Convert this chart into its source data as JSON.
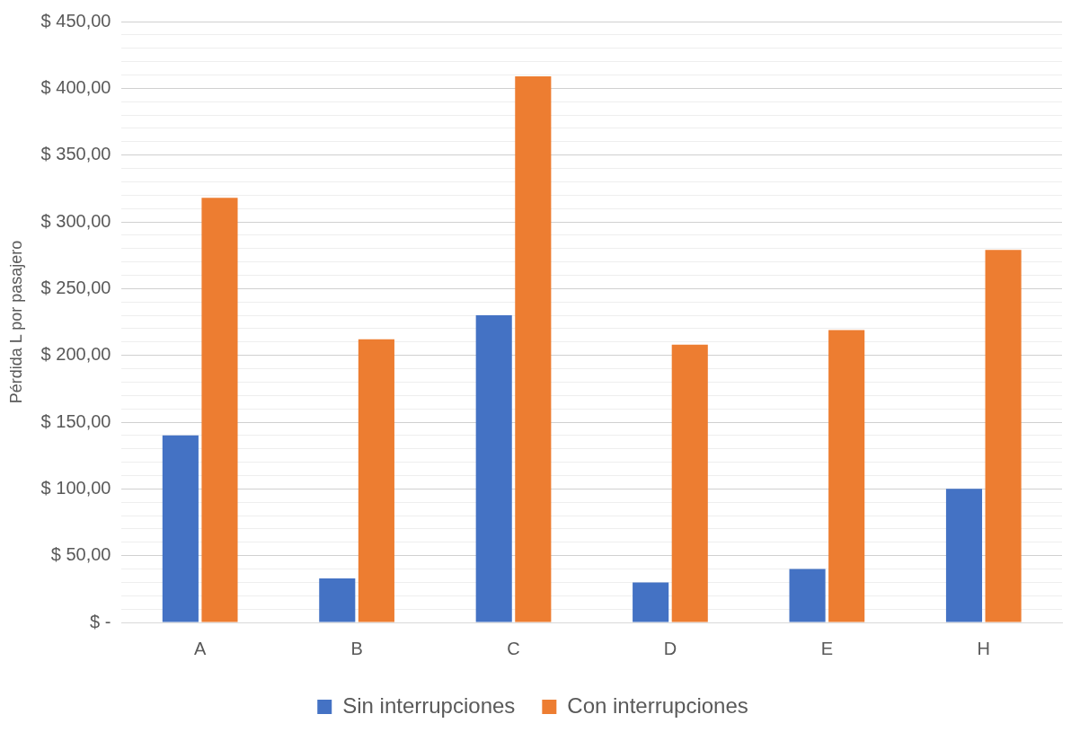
{
  "chart_data": {
    "type": "bar",
    "ylabel": "Pérdida L por pasajero",
    "categories": [
      "A",
      "B",
      "C",
      "D",
      "E",
      "H"
    ],
    "series": [
      {
        "name": "Sin interrupciones",
        "color": "#4472c4",
        "values": [
          140,
          33,
          230,
          30,
          40,
          100
        ]
      },
      {
        "name": "Con interrupciones",
        "color": "#ed7d31",
        "values": [
          318,
          212,
          409,
          208,
          219,
          279
        ]
      }
    ],
    "ylim": [
      0,
      450
    ],
    "yticks": [
      {
        "value": 0,
        "label": "$ -"
      },
      {
        "value": 10,
        "label": null
      },
      {
        "value": 20,
        "label": null
      },
      {
        "value": 30,
        "label": null
      },
      {
        "value": 40,
        "label": null
      },
      {
        "value": 50,
        "label": "$ 50,00"
      },
      {
        "value": 60,
        "label": null
      },
      {
        "value": 70,
        "label": null
      },
      {
        "value": 80,
        "label": null
      },
      {
        "value": 90,
        "label": null
      },
      {
        "value": 100,
        "label": "$ 100,00"
      },
      {
        "value": 110,
        "label": null
      },
      {
        "value": 120,
        "label": null
      },
      {
        "value": 130,
        "label": null
      },
      {
        "value": 140,
        "label": null
      },
      {
        "value": 150,
        "label": "$ 150,00"
      },
      {
        "value": 160,
        "label": null
      },
      {
        "value": 170,
        "label": null
      },
      {
        "value": 180,
        "label": null
      },
      {
        "value": 190,
        "label": null
      },
      {
        "value": 200,
        "label": "$ 200,00"
      },
      {
        "value": 210,
        "label": null
      },
      {
        "value": 220,
        "label": null
      },
      {
        "value": 230,
        "label": null
      },
      {
        "value": 240,
        "label": null
      },
      {
        "value": 250,
        "label": "$ 250,00"
      },
      {
        "value": 260,
        "label": null
      },
      {
        "value": 270,
        "label": null
      },
      {
        "value": 280,
        "label": null
      },
      {
        "value": 290,
        "label": null
      },
      {
        "value": 300,
        "label": "$ 300,00"
      },
      {
        "value": 310,
        "label": null
      },
      {
        "value": 320,
        "label": null
      },
      {
        "value": 330,
        "label": null
      },
      {
        "value": 340,
        "label": null
      },
      {
        "value": 350,
        "label": "$ 350,00"
      },
      {
        "value": 360,
        "label": null
      },
      {
        "value": 370,
        "label": null
      },
      {
        "value": 380,
        "label": null
      },
      {
        "value": 390,
        "label": null
      },
      {
        "value": 400,
        "label": "$ 400,00"
      },
      {
        "value": 410,
        "label": null
      },
      {
        "value": 420,
        "label": null
      },
      {
        "value": 430,
        "label": null
      },
      {
        "value": 440,
        "label": null
      },
      {
        "value": 450,
        "label": "$ 450,00"
      }
    ],
    "grid": "y",
    "legend": "bottom"
  }
}
